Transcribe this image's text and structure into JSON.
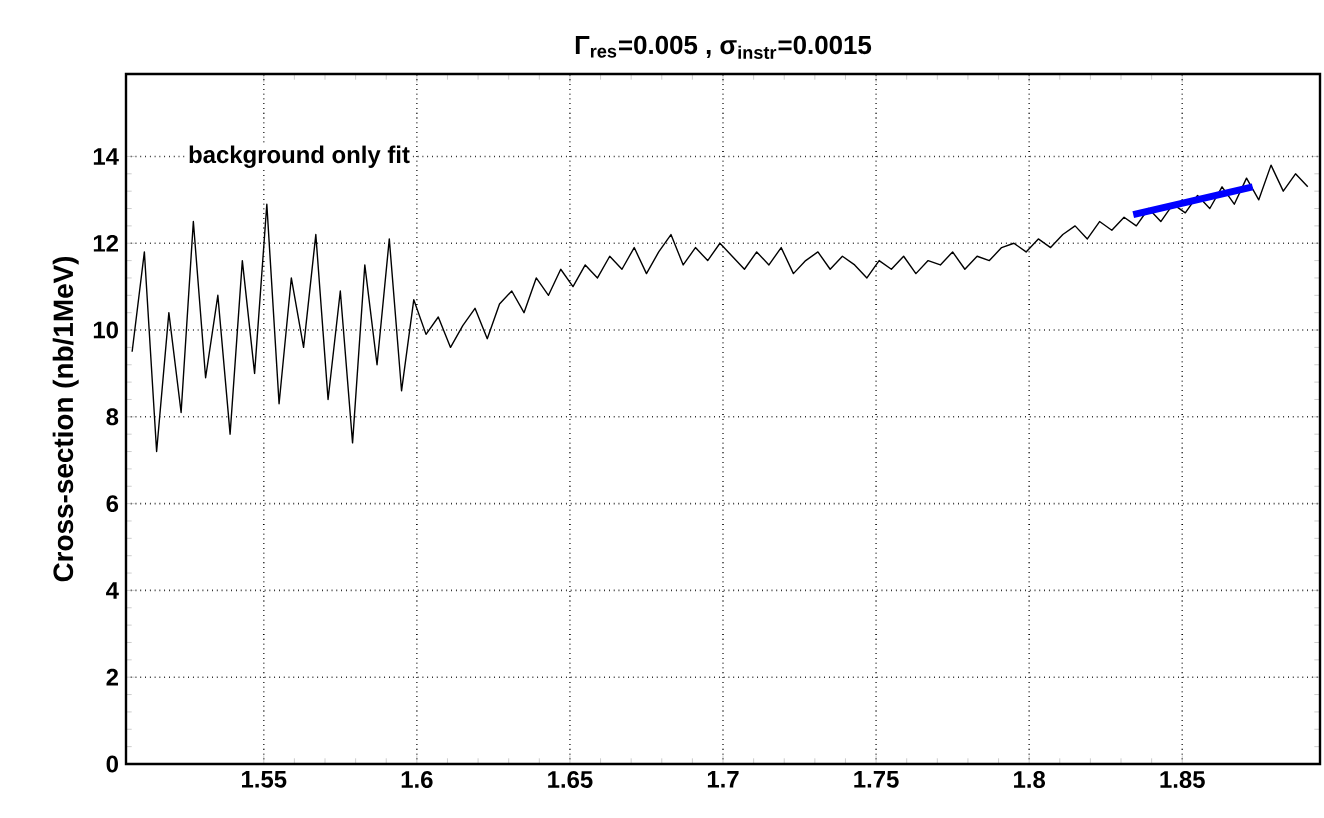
{
  "chart_data": {
    "type": "line",
    "title": "Γ$_{res}$=0.005 , σ$_{instr}$=0.0015",
    "ylabel": "Cross-section (nb/1MeV)",
    "annotations": [
      "background only fit"
    ],
    "xlim": [
      1.505,
      1.895
    ],
    "ylim": [
      0,
      15.9
    ],
    "xticks": [
      1.55,
      1.6,
      1.65,
      1.7,
      1.75,
      1.8,
      1.85
    ],
    "yticks": [
      0,
      2,
      4,
      6,
      8,
      10,
      12,
      14
    ],
    "grid": true,
    "marker": "none",
    "line_style": "solid",
    "series": [
      {
        "color": "#000000",
        "x": [
          1.507,
          1.511,
          1.515,
          1.519,
          1.523,
          1.527,
          1.531,
          1.535,
          1.539,
          1.543,
          1.547,
          1.551,
          1.555,
          1.559,
          1.563,
          1.567,
          1.571,
          1.575,
          1.579,
          1.583,
          1.587,
          1.591,
          1.595,
          1.599,
          1.603,
          1.607,
          1.611,
          1.615,
          1.619,
          1.623,
          1.627,
          1.631,
          1.635,
          1.639,
          1.643,
          1.647,
          1.651,
          1.655,
          1.659,
          1.663,
          1.667,
          1.671,
          1.675,
          1.679,
          1.683,
          1.687,
          1.691,
          1.695,
          1.699,
          1.703,
          1.707,
          1.711,
          1.715,
          1.719,
          1.723,
          1.727,
          1.731,
          1.735,
          1.739,
          1.743,
          1.747,
          1.751,
          1.755,
          1.759,
          1.763,
          1.767,
          1.771,
          1.775,
          1.779,
          1.783,
          1.787,
          1.791,
          1.795,
          1.799,
          1.803,
          1.807,
          1.811,
          1.815,
          1.819,
          1.823,
          1.827,
          1.831,
          1.835,
          1.839,
          1.843,
          1.847,
          1.851,
          1.855,
          1.859,
          1.863,
          1.867,
          1.871,
          1.875,
          1.879,
          1.883,
          1.887,
          1.891
        ],
        "values": [
          9.5,
          11.8,
          7.2,
          10.4,
          8.1,
          12.5,
          8.9,
          10.8,
          7.6,
          11.6,
          9.0,
          12.9,
          8.3,
          11.2,
          9.6,
          12.2,
          8.4,
          10.9,
          7.4,
          11.5,
          9.2,
          12.1,
          8.6,
          10.7,
          9.9,
          10.3,
          9.6,
          10.1,
          10.5,
          9.8,
          10.6,
          10.9,
          10.4,
          11.2,
          10.8,
          11.4,
          11.0,
          11.5,
          11.2,
          11.7,
          11.4,
          11.9,
          11.3,
          11.8,
          12.2,
          11.5,
          11.9,
          11.6,
          12.0,
          11.7,
          11.4,
          11.8,
          11.5,
          11.9,
          11.3,
          11.6,
          11.8,
          11.4,
          11.7,
          11.5,
          11.2,
          11.6,
          11.4,
          11.7,
          11.3,
          11.6,
          11.5,
          11.8,
          11.4,
          11.7,
          11.6,
          11.9,
          12.0,
          11.8,
          12.1,
          11.9,
          12.2,
          12.4,
          12.1,
          12.5,
          12.3,
          12.6,
          12.4,
          12.8,
          12.5,
          12.9,
          12.7,
          13.1,
          12.8,
          13.3,
          12.9,
          13.5,
          13.0,
          13.8,
          13.2,
          13.6,
          13.3
        ]
      },
      {
        "color": "#0000ff",
        "x": [
          1.834,
          1.873
        ],
        "values": [
          12.66,
          13.3
        ]
      }
    ]
  }
}
